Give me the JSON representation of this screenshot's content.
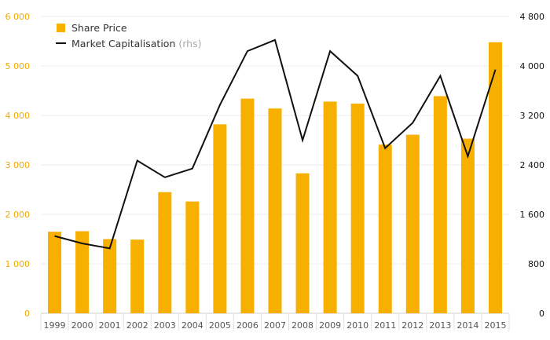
{
  "chart_data": {
    "type": "bar",
    "categories": [
      "1999",
      "2000",
      "2001",
      "2002",
      "2003",
      "2004",
      "2005",
      "2006",
      "2007",
      "2008",
      "2009",
      "2010",
      "2011",
      "2012",
      "2013",
      "2014",
      "2015"
    ],
    "series": [
      {
        "name": "Share Price",
        "type": "bar",
        "axis": "left",
        "color": "#f7b000",
        "values": [
          1650,
          1660,
          1500,
          1490,
          2450,
          2260,
          3820,
          4340,
          4140,
          2830,
          4280,
          4240,
          3410,
          3610,
          4390,
          3530,
          5480
        ]
      },
      {
        "name": "Market Capitalisation",
        "name_note": "(rhs)",
        "type": "line",
        "axis": "right",
        "color": "#111111",
        "values": [
          1250,
          1130,
          1050,
          2470,
          2200,
          2340,
          3370,
          4240,
          4420,
          2800,
          4240,
          3840,
          2670,
          3080,
          3840,
          2540,
          3940
        ]
      }
    ],
    "y_left": {
      "min": 0,
      "max": 6000,
      "ticks": [
        0,
        1000,
        2000,
        3000,
        4000,
        5000,
        6000
      ],
      "labels": [
        "0",
        "1 000",
        "2 000",
        "3 000",
        "4 000",
        "5 000",
        "6 000"
      ],
      "color": "#f2a800"
    },
    "y_right": {
      "min": 0,
      "max": 4800,
      "ticks": [
        0,
        800,
        1600,
        2400,
        3200,
        4000,
        4800
      ],
      "labels": [
        "0",
        "800",
        "1 600",
        "2 400",
        "3 200",
        "4 000",
        "4 800"
      ],
      "color": "#111111"
    },
    "grid": true,
    "legend_position": "top-left"
  }
}
